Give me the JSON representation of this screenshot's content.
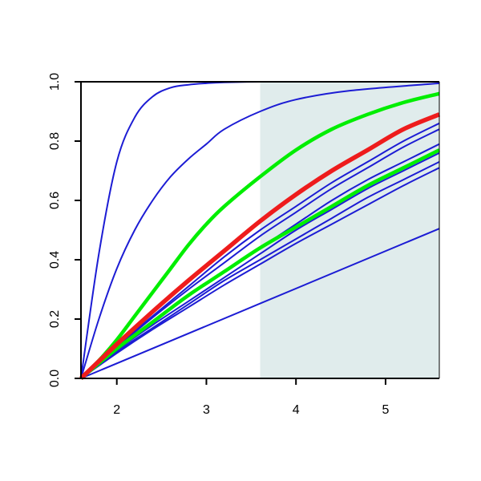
{
  "chart_data": {
    "type": "line",
    "title": "",
    "xlabel": "",
    "ylabel": "",
    "xlim": [
      1.6,
      5.6
    ],
    "ylim": [
      0.0,
      1.0
    ],
    "grid": false,
    "x_ticks": [
      2,
      3,
      4,
      5
    ],
    "x_tick_labels": [
      "2",
      "3",
      "4",
      "5"
    ],
    "y_ticks": [
      0.0,
      0.2,
      0.4,
      0.6,
      0.8,
      1.0
    ],
    "y_tick_labels": [
      "0.0",
      "0.2",
      "0.4",
      "0.6",
      "0.8",
      "1.0"
    ],
    "shaded_region": {
      "x": [
        3.6,
        5.6
      ],
      "color": "#e0ecec"
    },
    "series": [
      {
        "color": "#1c1cd4",
        "width": 2,
        "x": [
          1.6,
          1.8,
          2.0,
          2.2,
          2.4,
          2.6,
          2.8,
          3.0,
          3.2,
          3.6,
          4.0,
          4.6,
          5.6
        ],
        "values": [
          0.0,
          0.42,
          0.73,
          0.88,
          0.95,
          0.98,
          0.99,
          0.995,
          0.998,
          1.0,
          1.0,
          1.0,
          1.0
        ]
      },
      {
        "color": "#1c1cd4",
        "width": 2,
        "x": [
          1.6,
          1.8,
          2.0,
          2.2,
          2.4,
          2.6,
          2.8,
          3.0,
          3.2,
          3.6,
          4.0,
          4.6,
          5.6
        ],
        "values": [
          0.0,
          0.2,
          0.37,
          0.5,
          0.6,
          0.68,
          0.74,
          0.79,
          0.84,
          0.9,
          0.94,
          0.97,
          0.995
        ]
      },
      {
        "color": "#1c1cd4",
        "width": 2,
        "x": [
          1.6,
          2.0,
          2.4,
          2.8,
          3.2,
          3.6,
          4.0,
          4.4,
          4.8,
          5.2,
          5.6
        ],
        "values": [
          0.0,
          0.11,
          0.21,
          0.31,
          0.41,
          0.5,
          0.58,
          0.66,
          0.73,
          0.8,
          0.86
        ]
      },
      {
        "color": "#1c1cd4",
        "width": 2,
        "x": [
          1.6,
          2.0,
          2.4,
          2.8,
          3.2,
          3.6,
          4.0,
          4.4,
          4.8,
          5.2,
          5.6
        ],
        "values": [
          0.0,
          0.105,
          0.205,
          0.3,
          0.39,
          0.48,
          0.56,
          0.64,
          0.71,
          0.78,
          0.84
        ]
      },
      {
        "color": "#1c1cd4",
        "width": 2,
        "x": [
          1.6,
          2.0,
          2.4,
          2.8,
          3.2,
          3.6,
          4.0,
          4.4,
          4.8,
          5.2,
          5.6
        ],
        "values": [
          0.0,
          0.1,
          0.19,
          0.28,
          0.36,
          0.44,
          0.52,
          0.6,
          0.67,
          0.73,
          0.79
        ]
      },
      {
        "color": "#1c1cd4",
        "width": 2,
        "x": [
          1.6,
          2.0,
          2.4,
          2.8,
          3.2,
          3.6,
          4.0,
          4.4,
          4.8,
          5.2,
          5.6
        ],
        "values": [
          0.0,
          0.095,
          0.18,
          0.26,
          0.34,
          0.42,
          0.5,
          0.57,
          0.64,
          0.7,
          0.76
        ]
      },
      {
        "color": "#1c1cd4",
        "width": 2,
        "x": [
          1.6,
          2.0,
          2.4,
          2.8,
          3.2,
          3.6,
          4.0,
          4.4,
          4.8,
          5.2,
          5.6
        ],
        "values": [
          0.0,
          0.09,
          0.17,
          0.25,
          0.33,
          0.4,
          0.47,
          0.54,
          0.61,
          0.67,
          0.73
        ]
      },
      {
        "color": "#1c1cd4",
        "width": 2,
        "x": [
          1.6,
          2.0,
          2.4,
          2.8,
          3.2,
          3.6,
          4.0,
          4.4,
          4.8,
          5.2,
          5.6
        ],
        "values": [
          0.0,
          0.085,
          0.165,
          0.24,
          0.315,
          0.385,
          0.455,
          0.52,
          0.585,
          0.65,
          0.71
        ]
      },
      {
        "color": "#1c1cd4",
        "width": 2,
        "x": [
          1.6,
          5.6
        ],
        "values": [
          0.0,
          0.505
        ]
      },
      {
        "color": "#00ee00",
        "width": 4.5,
        "x": [
          1.6,
          1.8,
          2.0,
          2.2,
          2.4,
          2.6,
          2.8,
          3.0,
          3.2,
          3.6,
          4.0,
          4.4,
          4.8,
          5.2,
          5.6
        ],
        "values": [
          0.0,
          0.06,
          0.13,
          0.21,
          0.29,
          0.37,
          0.45,
          0.52,
          0.58,
          0.68,
          0.77,
          0.84,
          0.89,
          0.93,
          0.96
        ]
      },
      {
        "color": "#00ee00",
        "width": 4.5,
        "x": [
          1.6,
          2.0,
          2.4,
          2.8,
          3.2,
          3.6,
          4.0,
          4.4,
          4.8,
          5.2,
          5.6
        ],
        "values": [
          0.0,
          0.1,
          0.19,
          0.28,
          0.36,
          0.44,
          0.51,
          0.58,
          0.65,
          0.71,
          0.77
        ]
      },
      {
        "color": "#ee1c1c",
        "width": 5.5,
        "x": [
          1.6,
          2.0,
          2.4,
          2.8,
          3.2,
          3.6,
          4.0,
          4.4,
          4.8,
          5.2,
          5.6
        ],
        "values": [
          0.0,
          0.115,
          0.225,
          0.33,
          0.43,
          0.53,
          0.62,
          0.7,
          0.77,
          0.84,
          0.89
        ]
      }
    ]
  }
}
